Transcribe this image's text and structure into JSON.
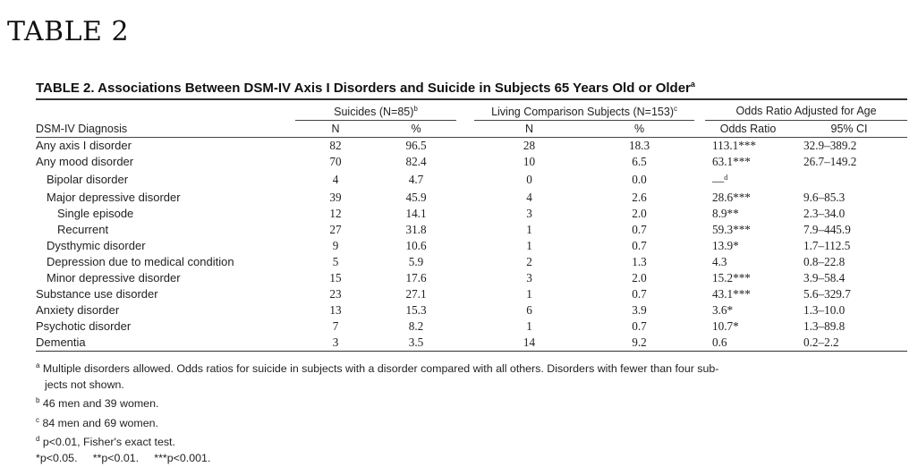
{
  "page_heading": "TABLE 2",
  "table_title": "TABLE 2. Associations Between DSM-IV Axis I Disorders and Suicide in Subjects 65 Years Old or Older",
  "table_title_mark": "a",
  "groups": {
    "suicides": "Suicides (N=85)",
    "suicides_mark": "b",
    "living": "Living Comparison Subjects (N=153)",
    "living_mark": "c",
    "odds": "Odds Ratio Adjusted for Age"
  },
  "columns": {
    "diagnosis": "DSM-IV Diagnosis",
    "n1": "N",
    "pct1": "%",
    "n2": "N",
    "pct2": "%",
    "odds_ratio": "Odds Ratio",
    "ci": "95% CI"
  },
  "rows": [
    {
      "label": "Any axis I disorder",
      "n1": "82",
      "pct1": "96.5",
      "n2": "28",
      "pct2": "18.3",
      "or": "113.1***",
      "ci": "32.9–389.2"
    },
    {
      "label": "Any mood disorder",
      "n1": "70",
      "pct1": "82.4",
      "n2": "10",
      "pct2": "6.5",
      "or": "63.1***",
      "ci": "26.7–149.2"
    },
    {
      "label": "Bipolar disorder",
      "n1": "4",
      "pct1": "4.7",
      "n2": "0",
      "pct2": "0.0",
      "or": "—",
      "or_mark": "d",
      "ci": ""
    },
    {
      "label": "Major depressive disorder",
      "n1": "39",
      "pct1": "45.9",
      "n2": "4",
      "pct2": "2.6",
      "or": "28.6***",
      "ci": "9.6–85.3"
    },
    {
      "label": "Single episode",
      "n1": "12",
      "pct1": "14.1",
      "n2": "3",
      "pct2": "2.0",
      "or": "8.9**",
      "ci": "2.3–34.0"
    },
    {
      "label": "Recurrent",
      "n1": "27",
      "pct1": "31.8",
      "n2": "1",
      "pct2": "0.7",
      "or": "59.3***",
      "ci": "7.9–445.9"
    },
    {
      "label": "Dysthymic disorder",
      "n1": "9",
      "pct1": "10.6",
      "n2": "1",
      "pct2": "0.7",
      "or": "13.9*",
      "ci": "1.7–112.5"
    },
    {
      "label": "Depression due to medical condition",
      "n1": "5",
      "pct1": "5.9",
      "n2": "2",
      "pct2": "1.3",
      "or": "4.3",
      "ci": "0.8–22.8"
    },
    {
      "label": "Minor depressive disorder",
      "n1": "15",
      "pct1": "17.6",
      "n2": "3",
      "pct2": "2.0",
      "or": "15.2***",
      "ci": "3.9–58.4"
    },
    {
      "label": "Substance use disorder",
      "n1": "23",
      "pct1": "27.1",
      "n2": "1",
      "pct2": "0.7",
      "or": "43.1***",
      "ci": "5.6–329.7"
    },
    {
      "label": "Anxiety disorder",
      "n1": "13",
      "pct1": "15.3",
      "n2": "6",
      "pct2": "3.9",
      "or": "3.6*",
      "ci": "1.3–10.0"
    },
    {
      "label": "Psychotic disorder",
      "n1": "7",
      "pct1": "8.2",
      "n2": "1",
      "pct2": "0.7",
      "or": "10.7*",
      "ci": "1.3–89.8"
    },
    {
      "label": "Dementia",
      "n1": "3",
      "pct1": "3.5",
      "n2": "14",
      "pct2": "9.2",
      "or": "0.6",
      "ci": "0.2–2.2"
    }
  ],
  "footnotes": {
    "a_mark": "a",
    "a_line1": "Multiple disorders allowed. Odds ratios for suicide in subjects with a disorder compared with all others. Disorders with fewer than four sub-",
    "a_line2": "jects not shown.",
    "b_mark": "b",
    "b_text": "46 men and 39 women.",
    "c_mark": "c",
    "c_text": "84 men and 69 women.",
    "d_mark": "d",
    "d_text": "p<0.01, Fisher's exact test.",
    "sig": "*p<0.05.     **p<0.01.     ***p<0.001."
  }
}
